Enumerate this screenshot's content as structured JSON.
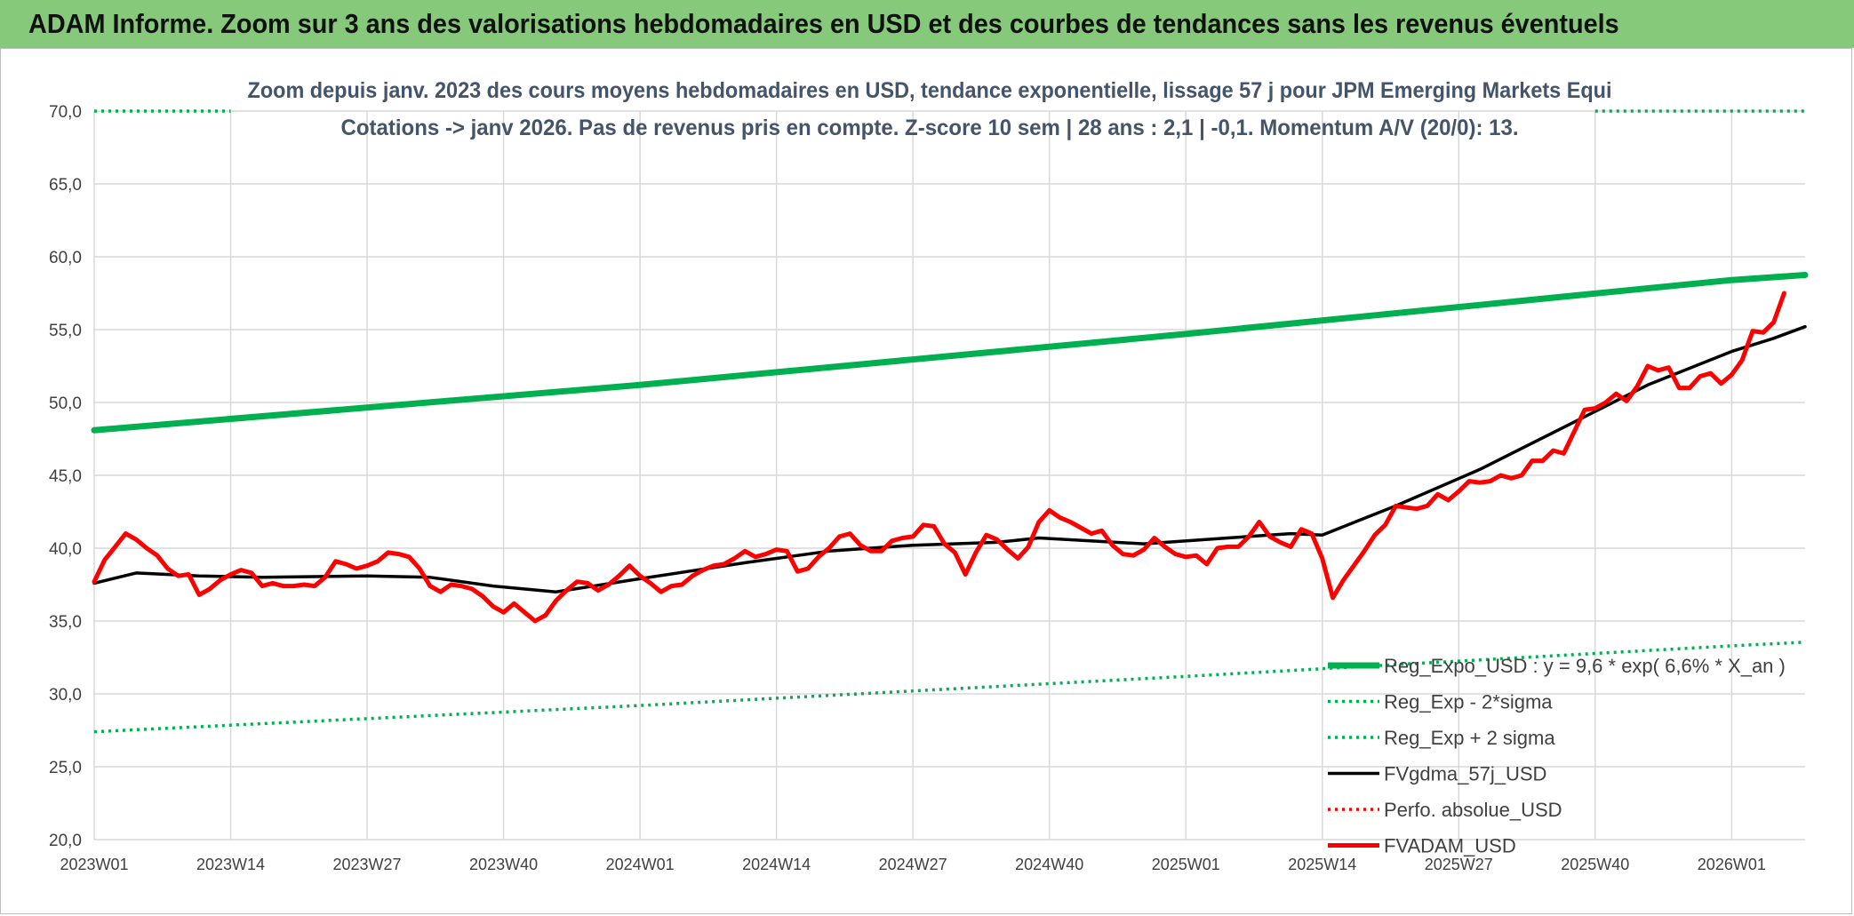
{
  "banner": {
    "title": "ADAM Informe. Zoom sur 3 ans des valorisations hebdomadaires en USD et des courbes de tendances sans les revenus éventuels"
  },
  "colors": {
    "banner_bg": "#86c97a",
    "reg_expo": "#00b050",
    "fvgdma": "#000000",
    "fvadam": "#ff0000",
    "perfo": "#ff0000",
    "grid": "#d9d9d9"
  },
  "chart_data": {
    "type": "line",
    "title_line1": "Zoom depuis janv. 2023 des cours moyens hebdomadaires en USD, tendance exponentielle, lissage 57 j pour JPM Emerging Markets Equi",
    "title_line2": "Cotations -> janv 2026. Pas de revenus pris en compte. Z-score 10 sem | 28 ans : 2,1 | -0,1. Momentum A/V (20/0): 13.",
    "ylim": [
      20,
      70
    ],
    "y_ticks": [
      "20,0",
      "25,0",
      "30,0",
      "35,0",
      "40,0",
      "45,0",
      "50,0",
      "55,0",
      "60,0",
      "65,0",
      "70,0"
    ],
    "x_ticks": [
      "2023W01",
      "2023W14",
      "2023W27",
      "2023W40",
      "2024W01",
      "2024W14",
      "2024W27",
      "2024W40",
      "2025W01",
      "2025W14",
      "2025W27",
      "2025W40",
      "2026W01"
    ],
    "weeks_total": 164,
    "grid": true,
    "legend_placement": "lower-right",
    "series": [
      {
        "name": "Reg_Expo_USD : y = 9,6 * exp( 6,6% *  X_an )",
        "style": "solid-thick",
        "color": "#00b050",
        "points": [
          [
            0,
            48.1
          ],
          [
            52,
            51.2
          ],
          [
            104,
            54.7
          ],
          [
            156,
            58.4
          ],
          [
            163,
            58.75
          ]
        ]
      },
      {
        "name": "Reg_Exp - 2*sigma",
        "style": "dotted",
        "color": "#00b050",
        "points": [
          [
            0,
            27.4
          ],
          [
            52,
            29.2
          ],
          [
            104,
            31.2
          ],
          [
            156,
            33.3
          ],
          [
            163,
            33.55
          ]
        ]
      },
      {
        "name": "Reg_Exp + 2 sigma",
        "style": "dotted",
        "color": "#00b050",
        "points": [
          [
            0,
            70.0
          ],
          [
            13,
            70.0
          ],
          [
            null,
            null
          ],
          [
            143,
            70.0
          ],
          [
            163,
            70.0
          ]
        ]
      },
      {
        "name": "FVgdma_57j_USD",
        "style": "solid",
        "color": "#000000",
        "points": [
          [
            0,
            37.6
          ],
          [
            4,
            38.3
          ],
          [
            10,
            38.1
          ],
          [
            16,
            38.0
          ],
          [
            26,
            38.1
          ],
          [
            32,
            38.0
          ],
          [
            38,
            37.4
          ],
          [
            44,
            37.0
          ],
          [
            52,
            37.9
          ],
          [
            62,
            39.0
          ],
          [
            70,
            39.8
          ],
          [
            78,
            40.2
          ],
          [
            86,
            40.4
          ],
          [
            90,
            40.7
          ],
          [
            100,
            40.3
          ],
          [
            108,
            40.7
          ],
          [
            114,
            41.0
          ],
          [
            117,
            40.9
          ],
          [
            124,
            42.9
          ],
          [
            132,
            45.4
          ],
          [
            140,
            48.3
          ],
          [
            148,
            51.2
          ],
          [
            156,
            53.5
          ],
          [
            160,
            54.4
          ],
          [
            163,
            55.2
          ]
        ]
      },
      {
        "name": "Perfo. absolue_USD",
        "style": "dotted",
        "color": "#ff0000",
        "points": []
      },
      {
        "name": "FVADAM_USD",
        "style": "solid-thick",
        "color": "#ff0000",
        "points": [
          [
            0,
            37.7
          ],
          [
            1,
            39.2
          ],
          [
            2,
            40.1
          ],
          [
            3,
            41.0
          ],
          [
            4,
            40.6
          ],
          [
            5,
            40.0
          ],
          [
            6,
            39.5
          ],
          [
            7,
            38.6
          ],
          [
            8,
            38.1
          ],
          [
            9,
            38.2
          ],
          [
            10,
            36.8
          ],
          [
            11,
            37.2
          ],
          [
            12,
            37.8
          ],
          [
            13,
            38.2
          ],
          [
            14,
            38.5
          ],
          [
            15,
            38.3
          ],
          [
            16,
            37.4
          ],
          [
            17,
            37.6
          ],
          [
            18,
            37.4
          ],
          [
            19,
            37.4
          ],
          [
            20,
            37.5
          ],
          [
            21,
            37.4
          ],
          [
            22,
            38.0
          ],
          [
            23,
            39.1
          ],
          [
            24,
            38.9
          ],
          [
            25,
            38.6
          ],
          [
            26,
            38.8
          ],
          [
            27,
            39.1
          ],
          [
            28,
            39.7
          ],
          [
            29,
            39.6
          ],
          [
            30,
            39.4
          ],
          [
            31,
            38.6
          ],
          [
            32,
            37.4
          ],
          [
            33,
            37.0
          ],
          [
            34,
            37.5
          ],
          [
            35,
            37.4
          ],
          [
            36,
            37.2
          ],
          [
            37,
            36.7
          ],
          [
            38,
            36.0
          ],
          [
            39,
            35.6
          ],
          [
            40,
            36.2
          ],
          [
            41,
            35.6
          ],
          [
            42,
            35.0
          ],
          [
            43,
            35.4
          ],
          [
            44,
            36.4
          ],
          [
            45,
            37.1
          ],
          [
            46,
            37.7
          ],
          [
            47,
            37.6
          ],
          [
            48,
            37.1
          ],
          [
            49,
            37.5
          ],
          [
            50,
            38.1
          ],
          [
            51,
            38.8
          ],
          [
            52,
            38.1
          ],
          [
            53,
            37.6
          ],
          [
            54,
            37.0
          ],
          [
            55,
            37.4
          ],
          [
            56,
            37.5
          ],
          [
            57,
            38.1
          ],
          [
            58,
            38.5
          ],
          [
            59,
            38.8
          ],
          [
            60,
            38.9
          ],
          [
            61,
            39.3
          ],
          [
            62,
            39.8
          ],
          [
            63,
            39.4
          ],
          [
            64,
            39.6
          ],
          [
            65,
            39.9
          ],
          [
            66,
            39.8
          ],
          [
            67,
            38.4
          ],
          [
            68,
            38.6
          ],
          [
            69,
            39.4
          ],
          [
            70,
            40.0
          ],
          [
            71,
            40.8
          ],
          [
            72,
            41.0
          ],
          [
            73,
            40.2
          ],
          [
            74,
            39.8
          ],
          [
            75,
            39.8
          ],
          [
            76,
            40.5
          ],
          [
            77,
            40.7
          ],
          [
            78,
            40.8
          ],
          [
            79,
            41.6
          ],
          [
            80,
            41.5
          ],
          [
            81,
            40.3
          ],
          [
            82,
            39.7
          ],
          [
            83,
            38.2
          ],
          [
            84,
            39.7
          ],
          [
            85,
            40.9
          ],
          [
            86,
            40.6
          ],
          [
            87,
            39.9
          ],
          [
            88,
            39.3
          ],
          [
            89,
            40.1
          ],
          [
            90,
            41.8
          ],
          [
            91,
            42.6
          ],
          [
            92,
            42.1
          ],
          [
            93,
            41.8
          ],
          [
            94,
            41.4
          ],
          [
            95,
            41.0
          ],
          [
            96,
            41.2
          ],
          [
            97,
            40.2
          ],
          [
            98,
            39.6
          ],
          [
            99,
            39.5
          ],
          [
            100,
            39.9
          ],
          [
            101,
            40.7
          ],
          [
            102,
            40.1
          ],
          [
            103,
            39.6
          ],
          [
            104,
            39.4
          ],
          [
            105,
            39.5
          ],
          [
            106,
            38.9
          ],
          [
            107,
            40.0
          ],
          [
            108,
            40.1
          ],
          [
            109,
            40.1
          ],
          [
            110,
            40.8
          ],
          [
            111,
            41.8
          ],
          [
            112,
            40.8
          ],
          [
            113,
            40.4
          ],
          [
            114,
            40.1
          ],
          [
            115,
            41.3
          ],
          [
            116,
            41.0
          ],
          [
            117,
            39.3
          ],
          [
            118,
            36.6
          ],
          [
            119,
            37.8
          ],
          [
            120,
            38.8
          ],
          [
            121,
            39.8
          ],
          [
            122,
            40.9
          ],
          [
            123,
            41.6
          ],
          [
            124,
            42.9
          ],
          [
            125,
            42.8
          ],
          [
            126,
            42.7
          ],
          [
            127,
            42.9
          ],
          [
            128,
            43.7
          ],
          [
            129,
            43.3
          ],
          [
            130,
            43.9
          ],
          [
            131,
            44.6
          ],
          [
            132,
            44.5
          ],
          [
            133,
            44.6
          ],
          [
            134,
            45.0
          ],
          [
            135,
            44.8
          ],
          [
            136,
            45.0
          ],
          [
            137,
            46.0
          ],
          [
            138,
            46.0
          ],
          [
            139,
            46.7
          ],
          [
            140,
            46.5
          ],
          [
            141,
            48.0
          ],
          [
            142,
            49.5
          ],
          [
            143,
            49.6
          ],
          [
            144,
            50.0
          ],
          [
            145,
            50.6
          ],
          [
            146,
            50.1
          ],
          [
            147,
            51.1
          ],
          [
            148,
            52.5
          ],
          [
            149,
            52.2
          ],
          [
            150,
            52.4
          ],
          [
            151,
            51.0
          ],
          [
            152,
            51.0
          ],
          [
            153,
            51.8
          ],
          [
            154,
            52.0
          ],
          [
            155,
            51.3
          ],
          [
            156,
            51.9
          ],
          [
            157,
            52.9
          ],
          [
            158,
            54.9
          ],
          [
            159,
            54.8
          ],
          [
            160,
            55.5
          ],
          [
            161,
            57.5
          ]
        ]
      }
    ]
  }
}
